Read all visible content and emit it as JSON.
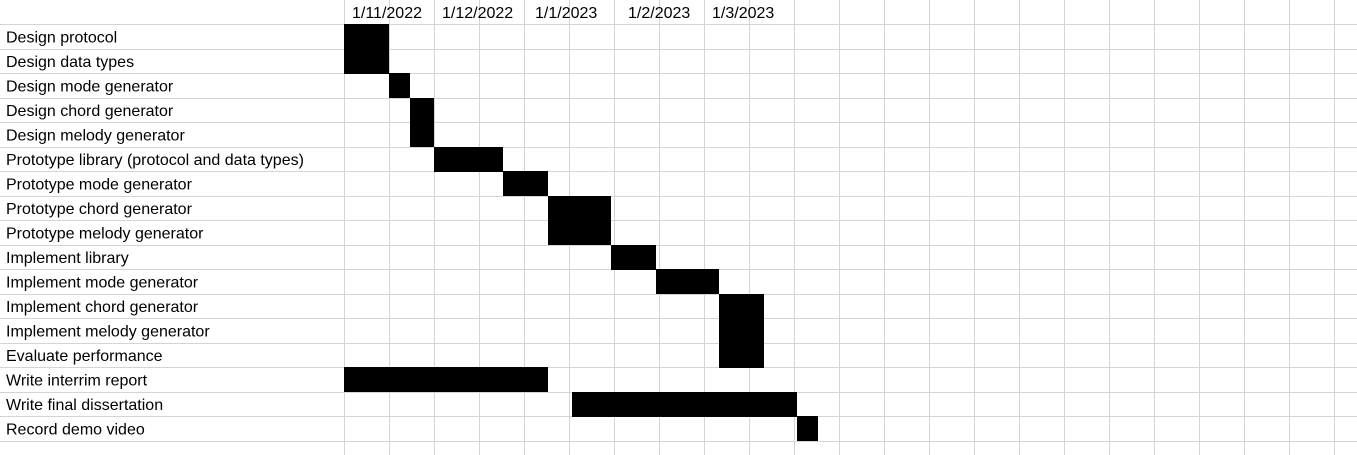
{
  "chart_data": {
    "type": "gantt",
    "title": "",
    "xlabel": "",
    "ylabel": "",
    "grid": true,
    "period_unit": "half-month",
    "start_date": "2022-11-01",
    "end_date": "2023-03-16",
    "header_ticks": [
      {
        "label": "1/11/2022",
        "date": "2022-11-01"
      },
      {
        "label": "1/12/2022",
        "date": "2022-12-01"
      },
      {
        "label": "1/1/2023",
        "date": "2023-01-01"
      },
      {
        "label": "1/2/2023",
        "date": "2023-02-01"
      },
      {
        "label": "1/3/2023",
        "date": "2023-03-01"
      }
    ],
    "tasks": [
      {
        "name": "Design protocol",
        "start": "2022-11-01",
        "end": "2022-11-16"
      },
      {
        "name": "Design data types",
        "start": "2022-11-01",
        "end": "2022-11-16"
      },
      {
        "name": "Design mode generator",
        "start": "2022-11-16",
        "end": "2022-11-23"
      },
      {
        "name": "Design chord generator",
        "start": "2022-11-23",
        "end": "2022-12-01"
      },
      {
        "name": "Design melody generator",
        "start": "2022-11-23",
        "end": "2022-12-01"
      },
      {
        "name": "Prototype library (protocol and data types)",
        "start": "2022-12-01",
        "end": "2022-12-24"
      },
      {
        "name": "Prototype mode generator",
        "start": "2022-12-24",
        "end": "2023-01-08"
      },
      {
        "name": "Prototype chord generator",
        "start": "2023-01-08",
        "end": "2023-01-29"
      },
      {
        "name": "Prototype melody generator",
        "start": "2023-01-08",
        "end": "2023-01-29"
      },
      {
        "name": "Implement library",
        "start": "2023-01-29",
        "end": "2023-02-13"
      },
      {
        "name": "Implement mode generator",
        "start": "2023-02-13",
        "end": "2023-03-06"
      },
      {
        "name": "Implement chord generator",
        "start": "2023-03-06",
        "end": "2023-03-21"
      },
      {
        "name": "Implement melody generator",
        "start": "2023-03-06",
        "end": "2023-03-21"
      },
      {
        "name": "Evaluate performance",
        "start": "2023-03-06",
        "end": "2023-03-21"
      },
      {
        "name": "Write interrim report",
        "start": "2022-11-01",
        "end": "2023-01-08"
      },
      {
        "name": "Write final dissertation",
        "start": "2023-01-16",
        "end": "2023-04-01"
      },
      {
        "name": "Record demo video",
        "start": "2023-04-01",
        "end": "2023-04-08"
      }
    ],
    "bar_color": "#000000",
    "grid_color": "#d4d4d4"
  }
}
